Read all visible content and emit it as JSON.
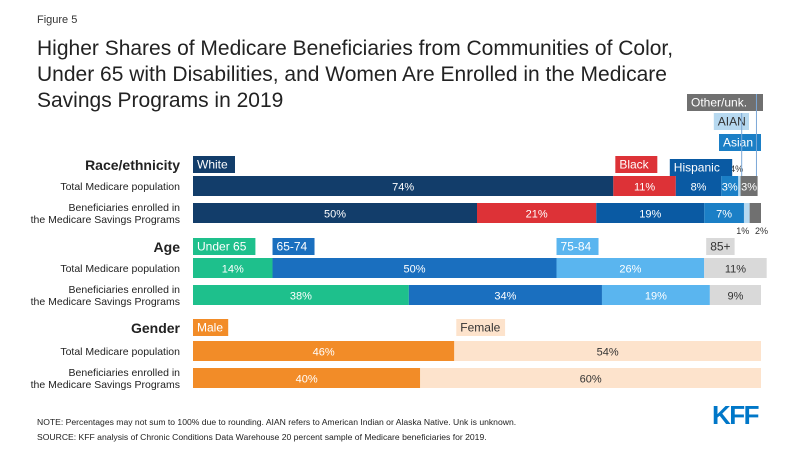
{
  "figure_label": "Figure 5",
  "title": "Higher Shares of Medicare Beneficiaries from Communities of Color, Under 65 with Disabilities, and Women Are Enrolled in the Medicare Savings Programs in 2019",
  "note": "NOTE: Percentages may not sum to 100% due to rounding. AIAN refers to American Indian or Alaska Native. Unk is unknown.",
  "source": "SOURCE: KFF analysis of Chronic Conditions Data Warehouse 20 percent sample of Medicare beneficiaries for 2019.",
  "logo_text": "KFF",
  "chart_data": {
    "type": "bar",
    "orientation": "horizontal",
    "stacked": true,
    "normalized_percent": true,
    "xlim": [
      0,
      100
    ],
    "groups": [
      {
        "heading": "Race/ethnicity",
        "categories": [
          "Total Medicare population",
          "Beneficiaries enrolled in the Medicare Savings Programs"
        ],
        "series": [
          {
            "name": "White",
            "color": "#123d6a",
            "values": [
              74,
              50
            ],
            "labels": [
              "74%",
              "50%"
            ]
          },
          {
            "name": "Black",
            "color": "#dd3237",
            "values": [
              11,
              21
            ],
            "labels": [
              "11%",
              "21%"
            ]
          },
          {
            "name": "Hispanic",
            "color": "#0a5aa3",
            "values": [
              8,
              19
            ],
            "labels": [
              "8%",
              "19%"
            ]
          },
          {
            "name": "Asian",
            "color": "#1b7fc6",
            "values": [
              3,
              7
            ],
            "labels": [
              "3%",
              "7%"
            ]
          },
          {
            "name": "AIAN",
            "color": "#b7d9f0",
            "values": [
              0.4,
              1
            ],
            "labels": [
              ".4%",
              "1%"
            ]
          },
          {
            "name": "Other/unk.",
            "color": "#707070",
            "values": [
              3,
              2
            ],
            "labels": [
              "3%",
              "2%"
            ]
          }
        ]
      },
      {
        "heading": "Age",
        "categories": [
          "Total Medicare population",
          "Beneficiaries enrolled in the Medicare Savings Programs"
        ],
        "series": [
          {
            "name": "Under 65",
            "color": "#1ec08c",
            "values": [
              14,
              38
            ],
            "labels": [
              "14%",
              "38%"
            ]
          },
          {
            "name": "65-74",
            "color": "#1a6fbf",
            "values": [
              50,
              34
            ],
            "labels": [
              "50%",
              "34%"
            ]
          },
          {
            "name": "75-84",
            "color": "#5ab5ef",
            "values": [
              26,
              19
            ],
            "labels": [
              "26%",
              "19%"
            ]
          },
          {
            "name": "85+",
            "color": "#d9d9d9",
            "values": [
              11,
              9
            ],
            "labels": [
              "11%",
              "9%"
            ]
          }
        ]
      },
      {
        "heading": "Gender",
        "categories": [
          "Total Medicare population",
          "Beneficiaries enrolled in the Medicare Savings Programs"
        ],
        "series": [
          {
            "name": "Male",
            "color": "#f28c28",
            "values": [
              46,
              40
            ],
            "labels": [
              "46%",
              "40%"
            ]
          },
          {
            "name": "Female",
            "color": "#fde3cc",
            "values": [
              54,
              60
            ],
            "labels": [
              "54%",
              "60%"
            ]
          }
        ]
      }
    ]
  }
}
